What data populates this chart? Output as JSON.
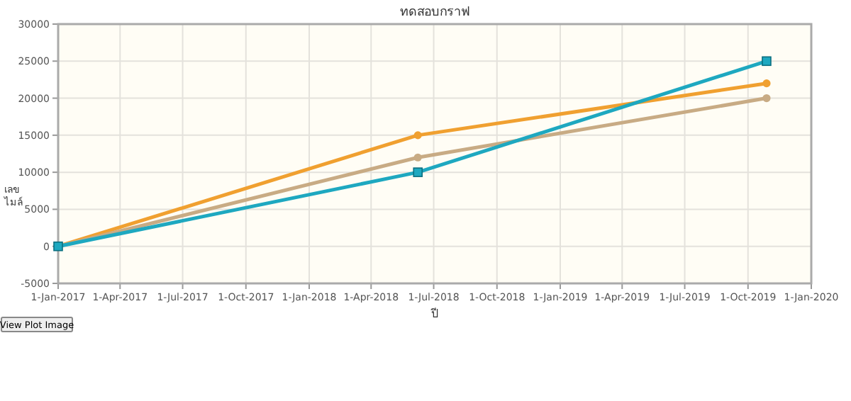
{
  "chart_data": {
    "type": "line",
    "title": "ทดสอบกราฟ",
    "xlabel": "ปี",
    "ylabel": "เลข ไมล์",
    "x": [
      "2017-01-01",
      "2018-06-08",
      "2019-10-28"
    ],
    "series": [
      {
        "color": "#f0a030",
        "marker": "circle",
        "values": [
          0,
          15000,
          22000
        ]
      },
      {
        "color": "#c8ab84",
        "marker": "circle",
        "values": [
          0,
          12000,
          20000
        ]
      },
      {
        "color": "#1ea8c0",
        "marker": "square",
        "values": [
          0,
          10000,
          25000
        ]
      }
    ],
    "xlim": [
      "2017-01-01",
      "2020-01-01"
    ],
    "xticks": [
      {
        "value": "2017-01-01",
        "label": "1-Jan-2017"
      },
      {
        "value": "2017-04-01",
        "label": "1-Apr-2017"
      },
      {
        "value": "2017-07-01",
        "label": "1-Jul-2017"
      },
      {
        "value": "2017-10-01",
        "label": "1-Oct-2017"
      },
      {
        "value": "2018-01-01",
        "label": "1-Jan-2018"
      },
      {
        "value": "2018-04-01",
        "label": "1-Apr-2018"
      },
      {
        "value": "2018-07-01",
        "label": "1-Jul-2018"
      },
      {
        "value": "2018-10-01",
        "label": "1-Oct-2018"
      },
      {
        "value": "2019-01-01",
        "label": "1-Jan-2019"
      },
      {
        "value": "2019-04-01",
        "label": "1-Apr-2019"
      },
      {
        "value": "2019-07-01",
        "label": "1-Jul-2019"
      },
      {
        "value": "2019-10-01",
        "label": "1-Oct-2019"
      },
      {
        "value": "2020-01-01",
        "label": "1-Jan-2020"
      }
    ],
    "ylim": [
      -5000,
      30000
    ],
    "yticks": [
      -5000,
      0,
      5000,
      10000,
      15000,
      20000,
      25000,
      30000
    ],
    "grid": true,
    "line_style": "solid",
    "annotations": [
      "View Plot Image"
    ]
  }
}
